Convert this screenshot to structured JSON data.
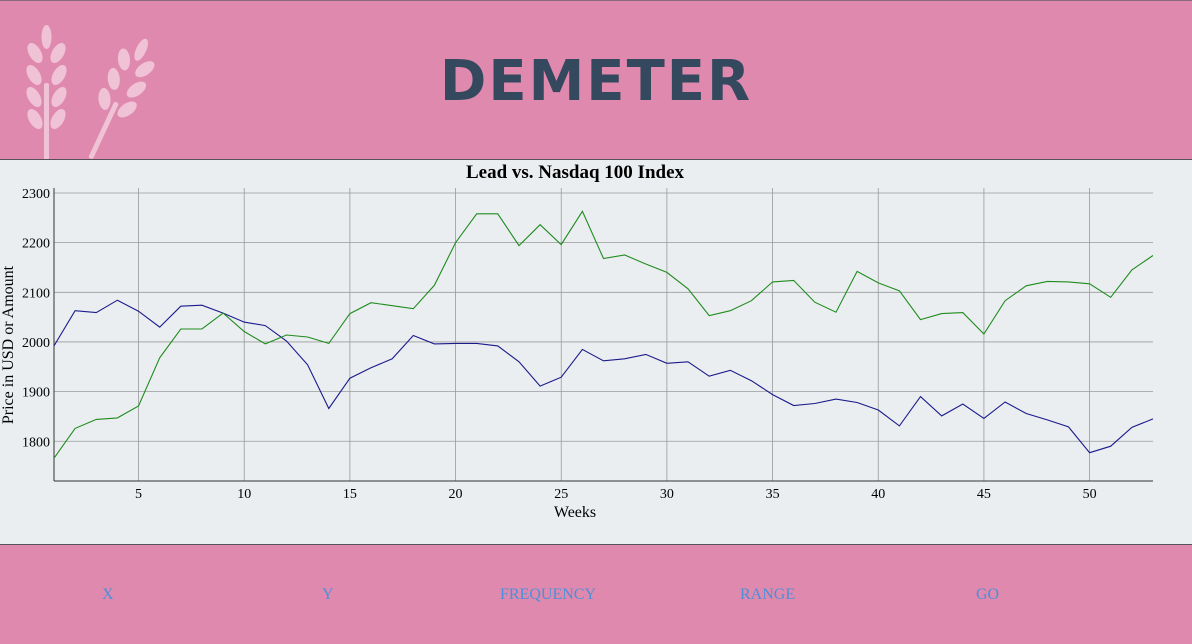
{
  "brand": {
    "name": "DEMETER",
    "logo_icon": "wheat-icon"
  },
  "nav": {
    "x_label": "X",
    "y_label": "Y",
    "frequency_label": "FREQUENCY",
    "range_label": "RANGE",
    "go_label": "GO"
  },
  "colors": {
    "header_bg": "#e089ae",
    "chart_bg": "#ebeef0",
    "brand_text": "#34495e",
    "link": "#4a90d9",
    "series_blue": "#1a1a8c",
    "series_green": "#1e8c1e"
  },
  "chart_data": {
    "type": "line",
    "title": "Lead vs. Nasdaq 100 Index",
    "xlabel": "Weeks",
    "ylabel": "Price in USD or Amount",
    "xlim": [
      1,
      53
    ],
    "ylim": [
      1720,
      2310
    ],
    "xticks": [
      5,
      10,
      15,
      20,
      25,
      30,
      35,
      40,
      45,
      50
    ],
    "yticks": [
      1800,
      1900,
      2000,
      2100,
      2200,
      2300
    ],
    "grid": true,
    "legend": "none",
    "x": [
      1,
      2,
      3,
      4,
      5,
      6,
      7,
      8,
      9,
      10,
      11,
      12,
      13,
      14,
      15,
      16,
      17,
      18,
      19,
      20,
      21,
      22,
      23,
      24,
      25,
      26,
      27,
      28,
      29,
      30,
      31,
      32,
      33,
      34,
      35,
      36,
      37,
      38,
      39,
      40,
      41,
      42,
      43,
      44,
      45,
      46,
      47,
      48,
      49,
      50,
      51,
      52,
      53
    ],
    "series": [
      {
        "color": "#1a1a8c",
        "values": [
          1992,
          2063,
          2059,
          2084,
          2062,
          2030,
          2072,
          2074,
          2058,
          2040,
          2033,
          2002,
          1954,
          1866,
          1927,
          1948,
          1966,
          2013,
          1996,
          1997,
          1997,
          1992,
          1960,
          1911,
          1929,
          1985,
          1962,
          1966,
          1975,
          1957,
          1960,
          1931,
          1943,
          1922,
          1894,
          1872,
          1876,
          1885,
          1878,
          1863,
          1831,
          1890,
          1851,
          1875,
          1846,
          1879,
          1856,
          1843,
          1829,
          1777,
          1790,
          1828,
          1845
        ]
      },
      {
        "color": "#1e8c1e",
        "values": [
          1766,
          1826,
          1844,
          1847,
          1871,
          1968,
          2026,
          2026,
          2058,
          2021,
          1996,
          2014,
          2010,
          1997,
          2057,
          2079,
          2073,
          2067,
          2114,
          2200,
          2258,
          2258,
          2194,
          2236,
          2196,
          2263,
          2168,
          2175,
          2157,
          2140,
          2107,
          2053,
          2063,
          2083,
          2121,
          2124,
          2080,
          2060,
          2142,
          2119,
          2103,
          2045,
          2057,
          2059,
          2016,
          2083,
          2113,
          2122,
          2121,
          2117,
          2090,
          2145,
          2174
        ]
      }
    ]
  }
}
